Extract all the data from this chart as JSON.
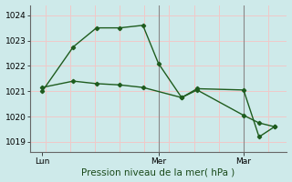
{
  "xlabel": "Pression niveau de la mer( hPa )",
  "background_color": "#ceeaea",
  "grid_color_h": "#f0c8c8",
  "grid_color_v": "#f0c8c8",
  "line_color": "#1e5c1e",
  "marker_color": "#1e5c1e",
  "ylim": [
    1018.6,
    1024.4
  ],
  "yticks": [
    1019,
    1020,
    1021,
    1022,
    1023,
    1024
  ],
  "xlim": [
    -0.3,
    16.3
  ],
  "day_labels": [
    "Lun",
    "Mer",
    "Mar"
  ],
  "day_positions": [
    0.5,
    8.0,
    13.5
  ],
  "vline_positions": [
    8.0,
    13.5
  ],
  "series1_x": [
    0.5,
    2.5,
    4.0,
    5.5,
    7.0,
    8.0,
    9.5,
    10.5,
    13.5,
    14.5,
    15.5
  ],
  "series1_y": [
    1021.0,
    1022.75,
    1023.5,
    1023.5,
    1023.6,
    1022.1,
    1020.75,
    1021.1,
    1021.05,
    1019.2,
    1019.6
  ],
  "series2_x": [
    0.5,
    2.5,
    4.0,
    5.5,
    7.0,
    9.5,
    10.5,
    13.5,
    14.5,
    15.5
  ],
  "series2_y": [
    1021.15,
    1021.4,
    1021.3,
    1021.25,
    1021.15,
    1020.75,
    1021.05,
    1020.05,
    1019.75,
    1019.6
  ],
  "xlabel_fontsize": 7.5,
  "tick_fontsize": 6.5,
  "figsize": [
    3.2,
    2.0
  ],
  "dpi": 100
}
